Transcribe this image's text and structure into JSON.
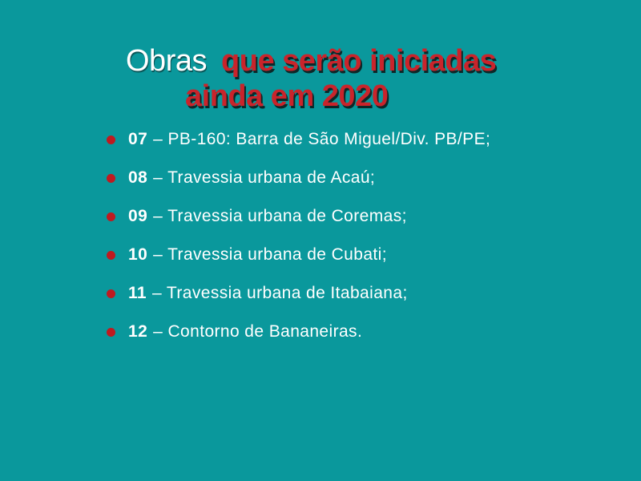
{
  "colors": {
    "background": "#0a989c",
    "title_red": "#c9242b",
    "title_white": "#ffffff",
    "bullet_red": "#bf1a20",
    "list_text": "#ffffff"
  },
  "title": {
    "white_text": "Obras",
    "red_text_line1": "que serão iniciadas",
    "red_text_line2": "ainda em 2020"
  },
  "list": {
    "items": [
      {
        "number": "07",
        "text": "– PB-160: Barra de São Miguel/Div. PB/PE;"
      },
      {
        "number": "08",
        "text": "– Travessia urbana de Acaú;"
      },
      {
        "number": "09",
        "text": "– Travessia urbana de Coremas;"
      },
      {
        "number": "10",
        "text": "– Travessia urbana de Cubati;"
      },
      {
        "number": "11",
        "text": "– Travessia urbana de Itabaiana;"
      },
      {
        "number": "12",
        "text": "– Contorno de Bananeiras."
      }
    ]
  }
}
